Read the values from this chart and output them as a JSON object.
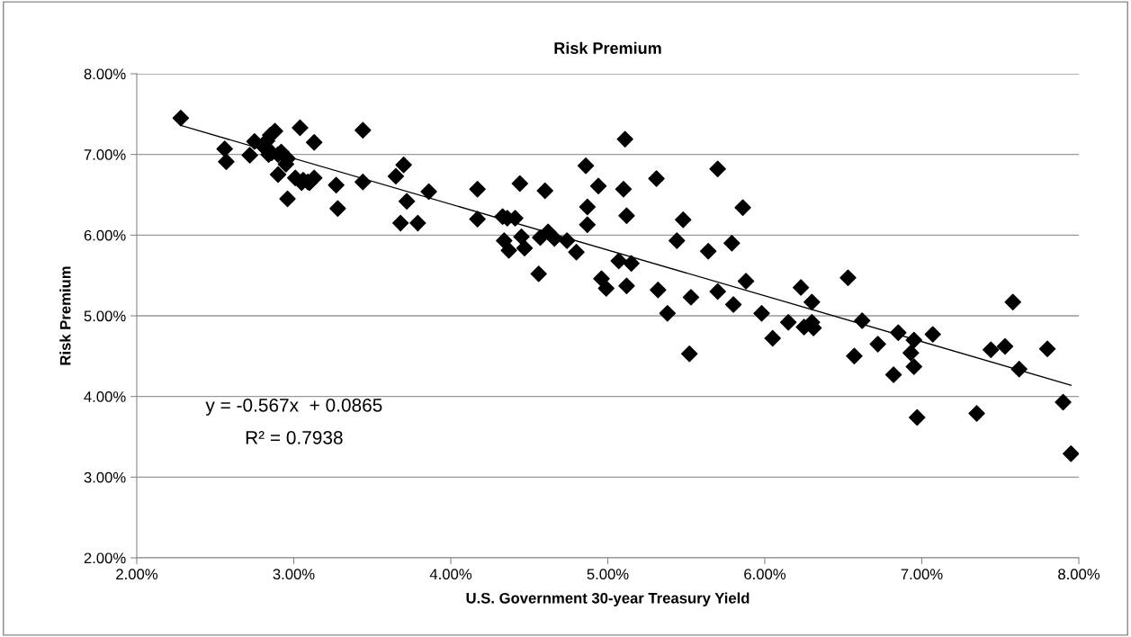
{
  "chart_data": {
    "type": "scatter",
    "title": "Risk Premium",
    "xlabel": "U.S. Government 30-year Treasury Yield",
    "ylabel": "Risk Premium",
    "series": [
      {
        "color": "#000000",
        "marker": "diamond",
        "x": [
          2.28,
          2.56,
          2.57,
          2.72,
          2.75,
          2.8,
          2.83,
          2.85,
          2.88,
          2.84,
          2.86,
          2.9,
          2.92,
          2.9,
          2.95,
          2.96,
          2.96,
          3.04,
          3.01,
          3.05,
          3.06,
          3.09,
          3.1,
          3.13,
          3.13,
          3.27,
          3.28,
          3.44,
          3.44,
          3.65,
          3.7,
          3.72,
          3.68,
          3.79,
          3.86,
          4.17,
          4.17,
          4.33,
          4.36,
          4.41,
          4.34,
          4.37,
          4.44,
          4.45,
          4.47,
          4.56,
          4.6,
          4.57,
          4.62,
          4.66,
          4.74,
          4.8,
          4.86,
          4.87,
          4.87,
          4.94,
          4.96,
          4.99,
          5.07,
          5.1,
          5.11,
          5.12,
          5.12,
          5.15,
          5.31,
          5.32,
          5.38,
          5.44,
          5.48,
          5.52,
          5.53,
          5.64,
          5.7,
          5.7,
          5.79,
          5.8,
          5.86,
          5.88,
          5.98,
          6.05,
          6.15,
          6.23,
          6.25,
          6.3,
          6.3,
          6.31,
          6.53,
          6.62,
          6.57,
          6.72,
          6.85,
          6.82,
          6.95,
          6.93,
          6.95,
          6.97,
          7.07,
          7.35,
          7.44,
          7.53,
          7.58,
          7.62,
          7.8,
          7.9,
          7.95
        ],
        "values": [
          7.45,
          7.07,
          6.91,
          6.99,
          7.16,
          7.11,
          7.17,
          7.24,
          7.29,
          7.0,
          7.02,
          7.0,
          7.03,
          6.75,
          6.88,
          6.95,
          6.45,
          7.33,
          6.71,
          6.65,
          6.68,
          6.66,
          6.65,
          6.71,
          7.15,
          6.62,
          6.33,
          7.3,
          6.66,
          6.73,
          6.87,
          6.42,
          6.15,
          6.15,
          6.54,
          6.57,
          6.2,
          6.23,
          6.21,
          6.21,
          5.93,
          5.81,
          6.64,
          5.98,
          5.84,
          5.52,
          6.55,
          5.97,
          6.04,
          5.96,
          5.93,
          5.79,
          6.86,
          6.35,
          6.13,
          6.61,
          5.46,
          5.34,
          5.68,
          6.57,
          7.19,
          6.24,
          5.37,
          5.65,
          6.7,
          5.32,
          5.03,
          5.93,
          6.19,
          4.53,
          5.23,
          5.8,
          5.3,
          6.82,
          5.9,
          5.14,
          6.34,
          5.43,
          5.03,
          4.72,
          4.92,
          5.35,
          4.86,
          5.17,
          4.92,
          4.85,
          5.47,
          4.94,
          4.5,
          4.65,
          4.79,
          4.27,
          4.7,
          4.54,
          4.37,
          3.74,
          4.77,
          3.79,
          4.58,
          4.62,
          5.17,
          4.34,
          4.59,
          3.93,
          3.29
        ]
      },
      {
        "type": "line",
        "color": "#000000",
        "x": [
          2.28,
          7.95
        ],
        "values": [
          7.36,
          4.14
        ]
      }
    ],
    "annotations": [
      "y = -0.567x  + 0.0865",
      "R² = 0.7938"
    ],
    "xlim": [
      2,
      8
    ],
    "ylim": [
      2,
      8
    ],
    "xticks": [
      {
        "value": 2,
        "label": "2.00%"
      },
      {
        "value": 3,
        "label": "3.00%"
      },
      {
        "value": 4,
        "label": "4.00%"
      },
      {
        "value": 5,
        "label": "5.00%"
      },
      {
        "value": 6,
        "label": "6.00%"
      },
      {
        "value": 7,
        "label": "7.00%"
      },
      {
        "value": 8,
        "label": "8.00%"
      }
    ],
    "yticks": [
      {
        "value": 2,
        "label": "2.00%"
      },
      {
        "value": 3,
        "label": "3.00%"
      },
      {
        "value": 4,
        "label": "4.00%"
      },
      {
        "value": 5,
        "label": "5.00%"
      },
      {
        "value": 6,
        "label": "6.00%"
      },
      {
        "value": 7,
        "label": "7.00%"
      },
      {
        "value": 8,
        "label": "8.00%"
      }
    ],
    "grid": "y"
  }
}
